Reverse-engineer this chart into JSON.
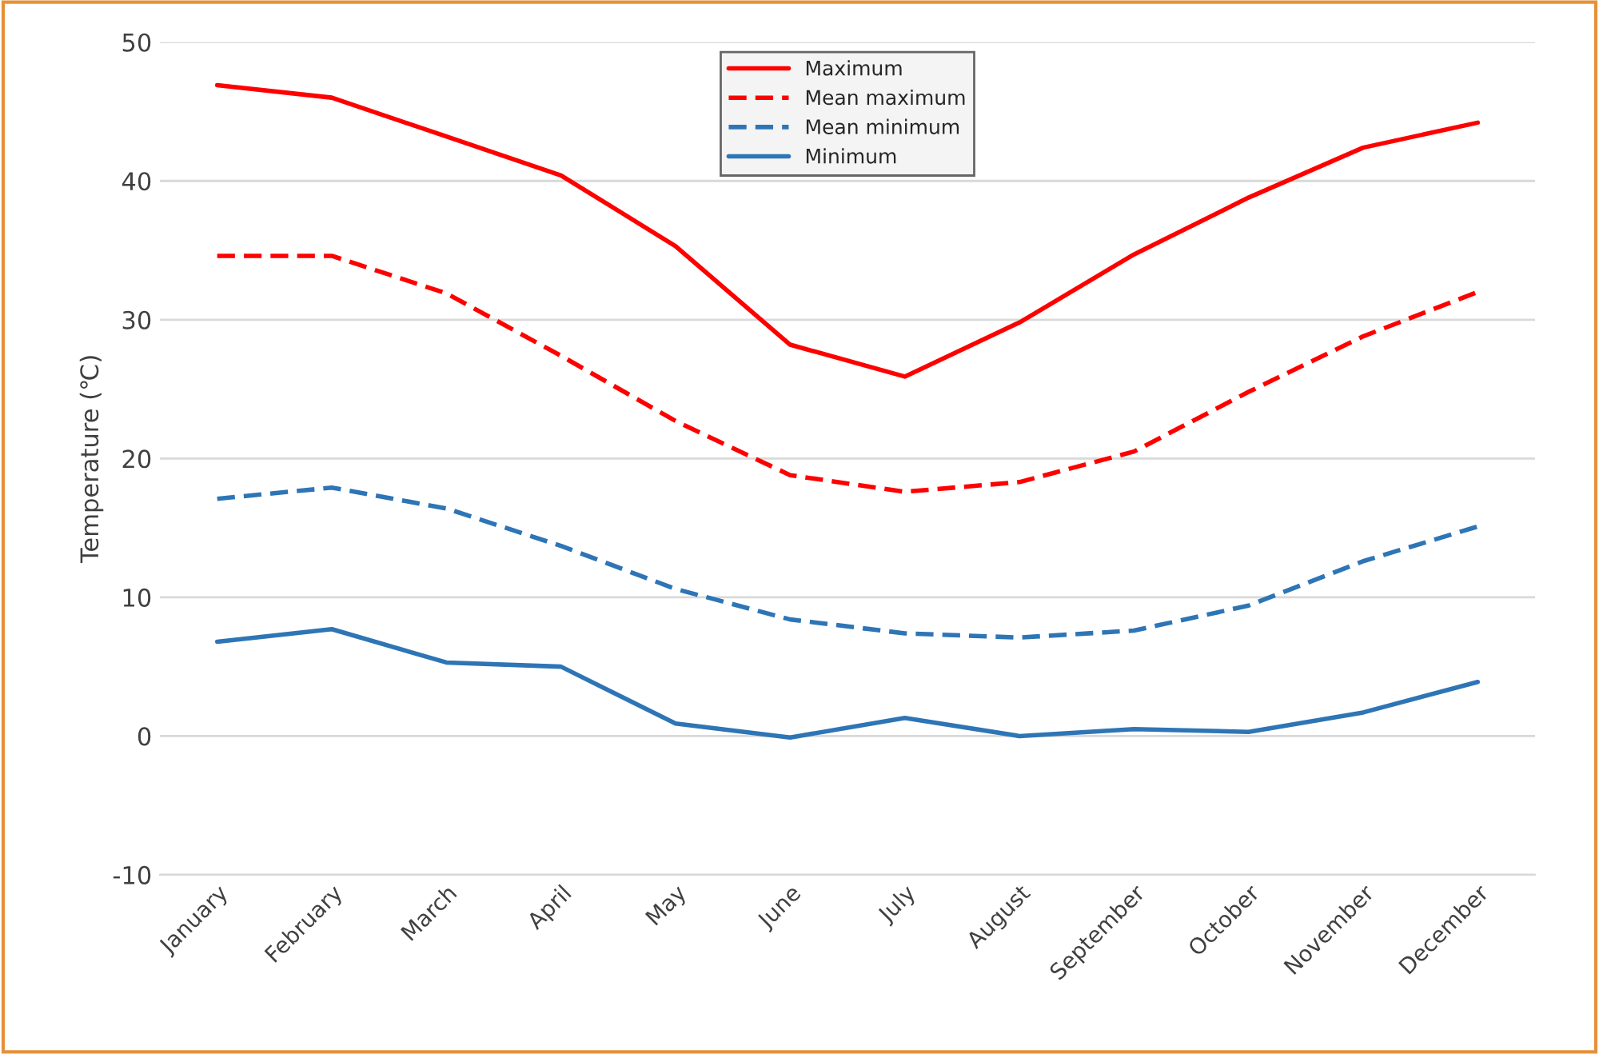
{
  "chart_data": {
    "type": "line",
    "ylabel": "Temperature (℃)",
    "categories": [
      "January",
      "February",
      "March",
      "April",
      "May",
      "June",
      "July",
      "August",
      "September",
      "October",
      "November",
      "December"
    ],
    "series": [
      {
        "name": "Maximum",
        "color": "#ff0000",
        "line_style": "solid",
        "values": [
          46.9,
          46.0,
          43.2,
          40.4,
          35.3,
          28.2,
          25.9,
          29.8,
          34.7,
          38.8,
          42.4,
          44.2
        ]
      },
      {
        "name": "Mean maximum",
        "color": "#ff0000",
        "line_style": "dashed",
        "values": [
          34.6,
          34.6,
          31.9,
          27.4,
          22.7,
          18.8,
          17.6,
          18.3,
          20.5,
          24.8,
          28.8,
          32.0
        ]
      },
      {
        "name": "Mean minimum",
        "color": "#2e75b6",
        "line_style": "dashed",
        "values": [
          17.1,
          17.9,
          16.4,
          13.7,
          10.6,
          8.4,
          7.4,
          7.1,
          7.6,
          9.4,
          12.6,
          15.1
        ]
      },
      {
        "name": "Minimum",
        "color": "#2e75b6",
        "line_style": "solid",
        "values": [
          6.8,
          7.7,
          5.3,
          5.0,
          0.9,
          -0.1,
          1.3,
          0.0,
          0.5,
          0.3,
          1.7,
          3.9
        ]
      }
    ],
    "ylim": [
      -10,
      50
    ],
    "yticks": [
      -10,
      0,
      10,
      20,
      30,
      40,
      50
    ],
    "grid": "y",
    "legend": "top",
    "marker": "none"
  }
}
